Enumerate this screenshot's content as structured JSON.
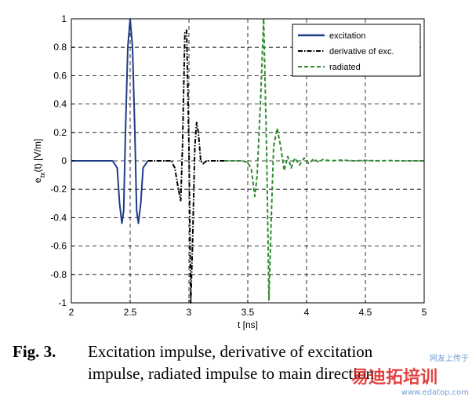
{
  "chart_data": {
    "type": "line",
    "title": "",
    "xlabel": "t [ns]",
    "ylabel": "e_tx(t) [V/m]",
    "ylabel_main": "e",
    "ylabel_sub": "tx",
    "ylabel_rest": "(t) [V/m]",
    "xlim": [
      2,
      5
    ],
    "ylim": [
      -1,
      1
    ],
    "xticks": [
      "2",
      "2.5",
      "3",
      "3.5",
      "4",
      "4.5",
      "5"
    ],
    "yticks": [
      "1",
      "0.8",
      "0.6",
      "0.4",
      "0.2",
      "0",
      "-0.2",
      "-0.4",
      "-0.6",
      "-0.8",
      "-1"
    ],
    "grid": true,
    "legend_position": "top-right",
    "series": [
      {
        "name": "excitation",
        "color": "#1f3c88",
        "style": "solid",
        "x": [
          2.0,
          2.35,
          2.39,
          2.41,
          2.43,
          2.445,
          2.46,
          2.48,
          2.5,
          2.52,
          2.54,
          2.555,
          2.57,
          2.59,
          2.61,
          2.65
        ],
        "y": [
          0,
          0,
          -0.05,
          -0.3,
          -0.44,
          -0.35,
          0.2,
          0.8,
          1.0,
          0.8,
          0.2,
          -0.35,
          -0.44,
          -0.3,
          -0.05,
          0
        ]
      },
      {
        "name": "derivative of exc.",
        "color": "#000000",
        "style": "dashdot",
        "x": [
          2.65,
          2.85,
          2.88,
          2.91,
          2.93,
          2.945,
          2.965,
          2.98,
          3.0,
          3.015,
          3.03,
          3.05,
          3.065,
          3.08,
          3.1,
          3.12,
          3.15,
          3.3
        ],
        "y": [
          0,
          0,
          -0.05,
          -0.2,
          -0.28,
          0.1,
          0.9,
          0.92,
          0.1,
          -1.0,
          -0.6,
          0.1,
          0.27,
          0.2,
          0.0,
          -0.02,
          0,
          0
        ]
      },
      {
        "name": "radiated",
        "color": "#2e8b2e",
        "style": "dashed",
        "x": [
          3.3,
          3.45,
          3.5,
          3.53,
          3.56,
          3.58,
          3.61,
          3.635,
          3.66,
          3.68,
          3.7,
          3.72,
          3.75,
          3.78,
          3.81,
          3.84,
          3.87,
          3.9,
          3.94,
          3.98,
          4.02,
          4.06,
          4.1,
          4.14,
          4.2,
          4.3,
          4.4,
          4.5,
          4.6,
          4.7,
          4.8,
          5.0
        ],
        "y": [
          0,
          0,
          -0.01,
          -0.06,
          -0.25,
          -0.1,
          0.45,
          1.0,
          0.1,
          -0.98,
          -0.4,
          0.1,
          0.23,
          0.1,
          -0.07,
          0.03,
          -0.05,
          0.02,
          -0.03,
          0.02,
          -0.02,
          0.015,
          -0.01,
          0.01,
          0.0,
          0.005,
          0.0,
          0.003,
          0.0,
          0.002,
          0.0,
          0.0
        ]
      }
    ]
  },
  "caption": {
    "fig_label": "Fig. 3.",
    "line1": "Excitation impulse, derivative of excitation",
    "line2": "impulse, radiated impulse to main direction"
  },
  "watermark": {
    "line1": "网友上传于",
    "line2": "易迪拓培训",
    "line3": "www.edatop.com"
  }
}
